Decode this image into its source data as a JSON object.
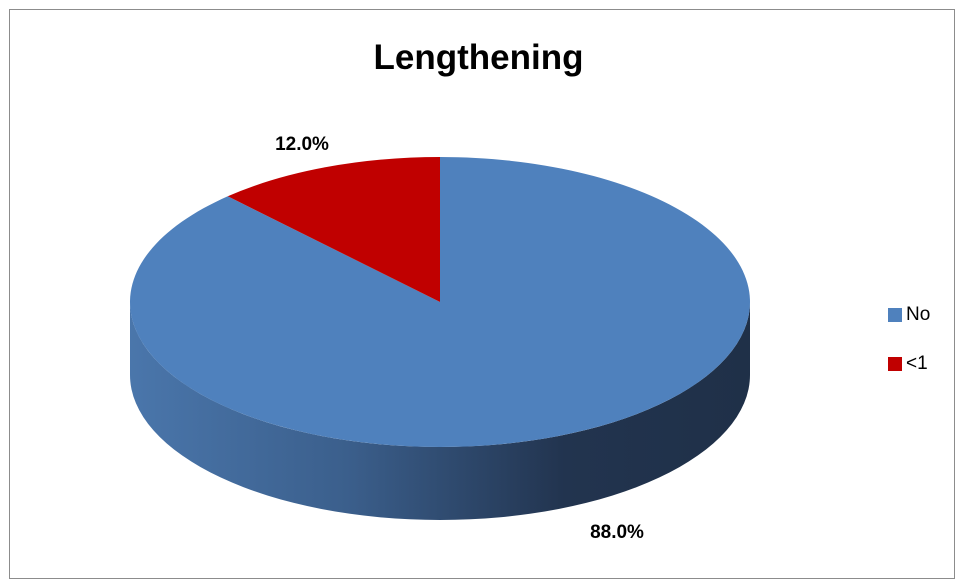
{
  "chart_data": {
    "type": "pie",
    "title": "Lengthening",
    "categories": [
      "No",
      "<1"
    ],
    "values": [
      88.0,
      12.0
    ],
    "labels": [
      "88.0%",
      "12.0%"
    ],
    "colors": [
      "#4f81bd",
      "#c00000"
    ],
    "legend_position": "right",
    "style": "3d"
  },
  "legend": {
    "items": [
      {
        "label": "No",
        "color": "#4f81bd"
      },
      {
        "label": "<1",
        "color": "#c00000"
      }
    ]
  }
}
